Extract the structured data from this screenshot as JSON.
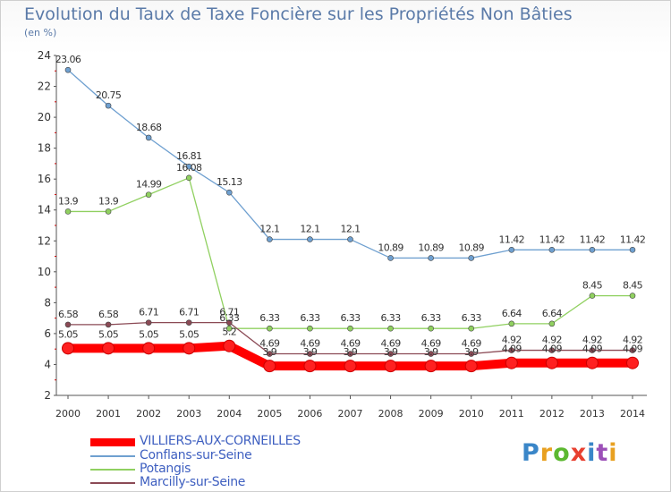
{
  "title": "Evolution du Taux de Taxe Foncière sur les Propriétés Non Bâties",
  "unit_label": "(en %)",
  "logo": {
    "text": "Proxiti",
    "colors": [
      "#3a86c8",
      "#e8a020",
      "#5cb830",
      "#e84030",
      "#3a86c8",
      "#9c50b8",
      "#e8a020"
    ]
  },
  "chart_data": {
    "type": "line",
    "title": "Evolution du Taux de Taxe Foncière sur les Propriétés Non Bâties",
    "ylabel": "(en %)",
    "xlabel": "",
    "ylim": [
      2,
      24
    ],
    "yticks": [
      "2",
      "4",
      "6",
      "8",
      "10",
      "12",
      "14",
      "16",
      "18",
      "20",
      "22",
      "24"
    ],
    "grid": false,
    "legend_position": "bottom-left",
    "categories": [
      "2000",
      "2001",
      "2002",
      "2003",
      "2004",
      "2005",
      "2006",
      "2007",
      "2008",
      "2009",
      "2010",
      "2011",
      "2012",
      "2013",
      "2014"
    ],
    "series": [
      {
        "name": "VILLIERS-AUX-CORNEILLES",
        "color": "#ff0000",
        "values": [
          5.05,
          5.05,
          5.05,
          5.05,
          5.2,
          3.9,
          3.9,
          3.9,
          3.9,
          3.9,
          3.9,
          4.1,
          4.1,
          4.1,
          4.1
        ],
        "labels": [
          "5.05",
          "5.05",
          "5.05",
          "5.05",
          "5.2",
          "3.9",
          "3.9",
          "3.9",
          "3.9",
          "3.9",
          "3.9",
          "4.09",
          "4.09",
          "4.09",
          "4.09"
        ]
      },
      {
        "name": "Conflans-sur-Seine",
        "color": "#6fa0d0",
        "values": [
          23.06,
          20.75,
          18.68,
          16.81,
          15.13,
          12.1,
          12.1,
          12.1,
          10.89,
          10.89,
          10.89,
          11.42,
          11.42,
          11.42,
          11.42
        ],
        "labels": [
          "23.06",
          "20.75",
          "18.68",
          "16.81",
          "15.13",
          "12.1",
          "12.1",
          "12.1",
          "10.89",
          "10.89",
          "10.89",
          "11.42",
          "11.42",
          "11.42",
          "11.42"
        ]
      },
      {
        "name": "Potangis",
        "color": "#90d060",
        "values": [
          13.9,
          13.9,
          14.99,
          16.08,
          6.33,
          6.33,
          6.33,
          6.33,
          6.33,
          6.33,
          6.33,
          6.64,
          6.64,
          8.45,
          8.45
        ],
        "labels": [
          "13.9",
          "13.9",
          "14.99",
          "16.08",
          "6.33",
          "6.33",
          "6.33",
          "6.33",
          "6.33",
          "6.33",
          "6.33",
          "6.64",
          "6.64",
          "8.45",
          "8.45"
        ]
      },
      {
        "name": "Marcilly-sur-Seine",
        "color": "#8b4a55",
        "values": [
          6.58,
          6.58,
          6.71,
          6.71,
          6.71,
          4.69,
          4.69,
          4.69,
          4.69,
          4.69,
          4.69,
          4.92,
          4.92,
          4.92,
          4.92
        ],
        "labels": [
          "6.58",
          "6.58",
          "6.71",
          "6.71",
          "6.71",
          "4.69",
          "4.69",
          "4.69",
          "4.69",
          "4.69",
          "4.69",
          "4.92",
          "4.92",
          "4.92",
          "4.92"
        ]
      }
    ]
  }
}
